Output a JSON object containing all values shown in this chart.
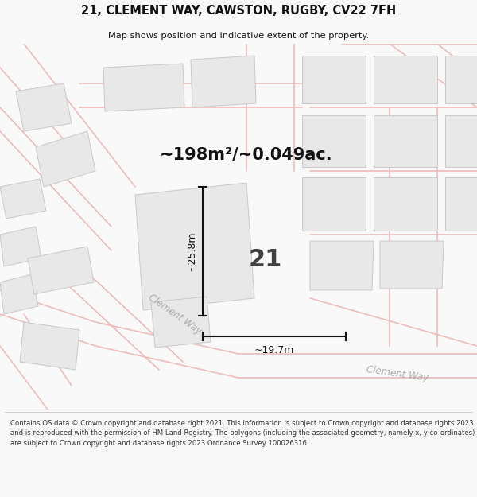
{
  "title": "21, CLEMENT WAY, CAWSTON, RUGBY, CV22 7FH",
  "subtitle": "Map shows position and indicative extent of the property.",
  "area_text": "~198m²/~0.049ac.",
  "dim_vertical": "~25.8m",
  "dim_horizontal": "~19.7m",
  "label_number": "21",
  "road_label1": "Clement Way",
  "road_label2": "Clement Way",
  "footer": "Contains OS data © Crown copyright and database right 2021. This information is subject to Crown copyright and database rights 2023 and is reproduced with the permission of HM Land Registry. The polygons (including the associated geometry, namely x, y co-ordinates) are subject to Crown copyright and database rights 2023 Ordnance Survey 100026316.",
  "bg_color": "#f9f9f9",
  "map_bg": "#ffffff",
  "property_edge_color": "#dd0000",
  "road_color": "#f0bbbb",
  "road_lw": 1.2,
  "building_fill": "#e8e8e8",
  "building_edge": "#c8c8c8",
  "dim_line_color": "#111111",
  "number_color": "#404040",
  "area_text_color": "#111111",
  "road_label_color": "#aaaaaa",
  "footer_color": "#333333",
  "title_color": "#111111"
}
